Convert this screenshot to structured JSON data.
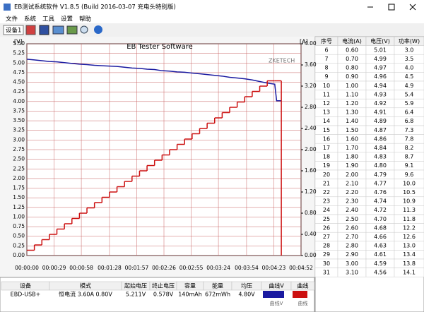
{
  "window": {
    "title": "EB测试系统软件 V1.8.5 (Build 2016-03-07 充电头特别版)"
  },
  "menu": [
    "文件",
    "系统",
    "工具",
    "设置",
    "帮助"
  ],
  "toolbar": {
    "device": "设备1"
  },
  "chart_data": {
    "type": "line",
    "title": "EB Tester Software",
    "y_label": "[V]",
    "y2_label": "[A]",
    "watermark": "ZKETECH",
    "grid": true,
    "x": [
      0,
      8,
      16,
      24,
      32,
      40,
      48,
      56,
      64,
      72,
      80,
      88,
      96,
      104,
      112,
      120,
      128,
      136,
      144,
      152,
      160,
      168,
      176,
      184,
      192,
      200,
      208,
      216,
      224,
      232,
      240,
      248,
      256,
      264,
      266,
      271
    ],
    "xlim": [
      0,
      292
    ],
    "xticks": [
      {
        "value": 0,
        "label": "00:00:00"
      },
      {
        "value": 29,
        "label": "00:00:29"
      },
      {
        "value": 58,
        "label": "00:00:58"
      },
      {
        "value": 88,
        "label": "00:01:28"
      },
      {
        "value": 117,
        "label": "00:01:57"
      },
      {
        "value": 146,
        "label": "00:02:26"
      },
      {
        "value": 175,
        "label": "00:02:55"
      },
      {
        "value": 204,
        "label": "00:03:24"
      },
      {
        "value": 234,
        "label": "00:03:54"
      },
      {
        "value": 263,
        "label": "00:04:23"
      },
      {
        "value": 292,
        "label": "00:04:52"
      }
    ],
    "ylim": [
      0,
      5.5
    ],
    "yticks": [
      {
        "value": 0,
        "label": "0.00"
      },
      {
        "value": 0.25,
        "label": "0.25"
      },
      {
        "value": 0.5,
        "label": "0.50"
      },
      {
        "value": 0.75,
        "label": "0.75"
      },
      {
        "value": 1,
        "label": "1.00"
      },
      {
        "value": 1.25,
        "label": "1.25"
      },
      {
        "value": 1.5,
        "label": "1.50"
      },
      {
        "value": 1.75,
        "label": "1.75"
      },
      {
        "value": 2,
        "label": "2.00"
      },
      {
        "value": 2.25,
        "label": "2.25"
      },
      {
        "value": 2.5,
        "label": "2.50"
      },
      {
        "value": 2.75,
        "label": "2.75"
      },
      {
        "value": 3,
        "label": "3.00"
      },
      {
        "value": 3.25,
        "label": "3.25"
      },
      {
        "value": 3.5,
        "label": "3.50"
      },
      {
        "value": 3.75,
        "label": "3.75"
      },
      {
        "value": 4,
        "label": "4.00"
      },
      {
        "value": 4.25,
        "label": "4.25"
      },
      {
        "value": 4.5,
        "label": "4.50"
      },
      {
        "value": 4.75,
        "label": "4.75"
      },
      {
        "value": 5,
        "label": "5.00"
      },
      {
        "value": 5.25,
        "label": "5.25"
      },
      {
        "value": 5.5,
        "label": "5.50"
      }
    ],
    "y2lim": [
      0,
      4
    ],
    "y2ticks": [
      {
        "value": 0,
        "label": "0.00"
      },
      {
        "value": 0.4,
        "label": "0.40"
      },
      {
        "value": 0.8,
        "label": "0.80"
      },
      {
        "value": 1.2,
        "label": "1.20"
      },
      {
        "value": 1.6,
        "label": "1.60"
      },
      {
        "value": 2,
        "label": "2.00"
      },
      {
        "value": 2.4,
        "label": "2.40"
      },
      {
        "value": 2.8,
        "label": "2.80"
      },
      {
        "value": 3.2,
        "label": "3.20"
      },
      {
        "value": 3.6,
        "label": "3.60"
      },
      {
        "value": 4,
        "label": "4.00"
      }
    ],
    "series": [
      {
        "name": "曲线V",
        "color": "#1a1aa0",
        "values": [
          5.1,
          5.08,
          5.06,
          5.04,
          5.03,
          5.01,
          4.99,
          4.97,
          4.96,
          4.94,
          4.93,
          4.92,
          4.91,
          4.89,
          4.87,
          4.86,
          4.84,
          4.83,
          4.8,
          4.79,
          4.77,
          4.76,
          4.74,
          4.72,
          4.7,
          4.68,
          4.66,
          4.63,
          4.61,
          4.59,
          4.56,
          4.52,
          4.48,
          4.45,
          4.02,
          4.02
        ]
      },
      {
        "name": "曲线",
        "color": "#cc1010",
        "axis": "y2",
        "step": true,
        "values": [
          0.1,
          0.2,
          0.3,
          0.4,
          0.5,
          0.6,
          0.7,
          0.8,
          0.9,
          1.0,
          1.1,
          1.2,
          1.3,
          1.4,
          1.5,
          1.6,
          1.7,
          1.8,
          1.9,
          2.0,
          2.1,
          2.2,
          2.3,
          2.4,
          2.5,
          2.6,
          2.7,
          2.8,
          2.9,
          3.0,
          3.1,
          3.2,
          3.3,
          3.3,
          3.3,
          0
        ]
      }
    ]
  },
  "status": {
    "headers": [
      "设备",
      "模式",
      "起始电压",
      "终止电压",
      "容量",
      "能量",
      "均压",
      "曲线V",
      "曲线"
    ],
    "values": [
      "EBD-USB+",
      "恒电流 3.60A 0.80V",
      "5.211V",
      "0.578V",
      "140mAh",
      "672mWh",
      "4.80V"
    ]
  },
  "table": {
    "headers": [
      "序号",
      "电流(A)",
      "电压(V)",
      "功率(W)"
    ],
    "rows": [
      [
        "6",
        "0.60",
        "5.01",
        "3.0"
      ],
      [
        "7",
        "0.70",
        "4.99",
        "3.5"
      ],
      [
        "8",
        "0.80",
        "4.97",
        "4.0"
      ],
      [
        "9",
        "0.90",
        "4.96",
        "4.5"
      ],
      [
        "10",
        "1.00",
        "4.94",
        "4.9"
      ],
      [
        "11",
        "1.10",
        "4.93",
        "5.4"
      ],
      [
        "12",
        "1.20",
        "4.92",
        "5.9"
      ],
      [
        "13",
        "1.30",
        "4.91",
        "6.4"
      ],
      [
        "14",
        "1.40",
        "4.89",
        "6.8"
      ],
      [
        "15",
        "1.50",
        "4.87",
        "7.3"
      ],
      [
        "16",
        "1.60",
        "4.86",
        "7.8"
      ],
      [
        "17",
        "1.70",
        "4.84",
        "8.2"
      ],
      [
        "18",
        "1.80",
        "4.83",
        "8.7"
      ],
      [
        "19",
        "1.90",
        "4.80",
        "9.1"
      ],
      [
        "20",
        "2.00",
        "4.79",
        "9.6"
      ],
      [
        "21",
        "2.10",
        "4.77",
        "10.0"
      ],
      [
        "22",
        "2.20",
        "4.76",
        "10.5"
      ],
      [
        "23",
        "2.30",
        "4.74",
        "10.9"
      ],
      [
        "24",
        "2.40",
        "4.72",
        "11.3"
      ],
      [
        "25",
        "2.50",
        "4.70",
        "11.8"
      ],
      [
        "26",
        "2.60",
        "4.68",
        "12.2"
      ],
      [
        "27",
        "2.70",
        "4.66",
        "12.6"
      ],
      [
        "28",
        "2.80",
        "4.63",
        "13.0"
      ],
      [
        "29",
        "2.90",
        "4.61",
        "13.4"
      ],
      [
        "30",
        "3.00",
        "4.59",
        "13.8"
      ],
      [
        "31",
        "3.10",
        "4.56",
        "14.1"
      ]
    ]
  }
}
